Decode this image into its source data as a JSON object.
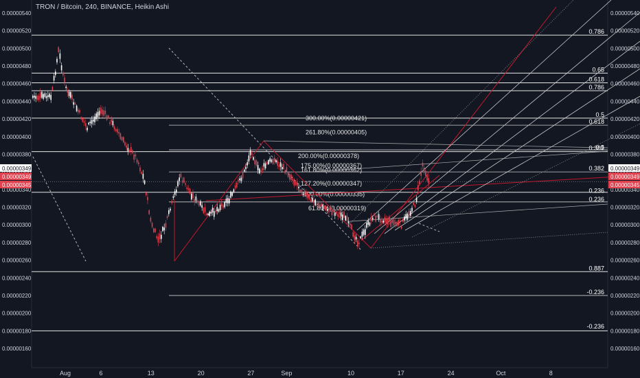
{
  "header": {
    "title": "TRON / Bitcoin, 240, BINANCE, Heikin Ashi"
  },
  "colors": {
    "background": "#131722",
    "bull": "#ffffff",
    "bear": "#e0414e",
    "fib_line": "#d1d4dc",
    "pitchfork_red": "#c2182b",
    "price_tag_red": "#e0414e",
    "dashed_trend": "#b2b5be"
  },
  "chart_data": {
    "type": "candlestick",
    "symbol": "TRON / Bitcoin",
    "interval": "240",
    "exchange": "BINANCE",
    "candle_style": "Heikin Ashi",
    "ylim": [
      1.5e-06,
      5.5e-06
    ],
    "y_ticks": [
      "0.00000540",
      "0.00000520",
      "0.00000500",
      "0.00000480",
      "0.00000460",
      "0.00000440",
      "0.00000420",
      "0.00000400",
      "0.00000380",
      "0.00000360",
      "0.00000340",
      "0.00000320",
      "0.00000300",
      "0.00000280",
      "0.00000260",
      "0.00000240",
      "0.00000220",
      "0.00000200",
      "0.00000180",
      "0.00000160"
    ],
    "x_ticks": [
      "Aug",
      "6",
      "13",
      "20",
      "27",
      "Sep",
      "10",
      "17",
      "24",
      "Oct",
      "8"
    ],
    "price_tags": {
      "left": [
        "0.00000349",
        "0.00000349",
        "0.00000345"
      ],
      "right": [
        "0.00000349",
        "0.00000349",
        "0.00000345"
      ]
    },
    "price_path": [
      [
        "Jul 30",
        4.45e-06
      ],
      [
        "Jul 31",
        4.98e-06
      ],
      [
        "Aug 1",
        4.55e-06
      ],
      [
        "Aug 2",
        4.4e-06
      ],
      [
        "Aug 4",
        4.1e-06
      ],
      [
        "Aug 6",
        4.3e-06
      ],
      [
        "Aug 8",
        4.1e-06
      ],
      [
        "Aug 9",
        3.95e-06
      ],
      [
        "Aug 11",
        3.75e-06
      ],
      [
        "Aug 12",
        3.5e-06
      ],
      [
        "Aug 13",
        3e-06
      ],
      [
        "Aug 14",
        2.82e-06
      ],
      [
        "Aug 15",
        3e-06
      ],
      [
        "Aug 17",
        3.55e-06
      ],
      [
        "Aug 19",
        3.3e-06
      ],
      [
        "Aug 21",
        3.1e-06
      ],
      [
        "Aug 24",
        3.3e-06
      ],
      [
        "Aug 26",
        3.6e-06
      ],
      [
        "Aug 27",
        3.85e-06
      ],
      [
        "Aug 28",
        3.6e-06
      ],
      [
        "Aug 30",
        3.75e-06
      ],
      [
        "Sep 1",
        3.6e-06
      ],
      [
        "Sep 4",
        3.3e-06
      ],
      [
        "Sep 6",
        3.2e-06
      ],
      [
        "Sep 9",
        3.1e-06
      ],
      [
        "Sep 11",
        2.8e-06
      ],
      [
        "Sep 13",
        3.1e-06
      ],
      [
        "Sep 15",
        3.05e-06
      ],
      [
        "Sep 17",
        3e-06
      ],
      [
        "Sep 19",
        3.25e-06
      ],
      [
        "Sep 20",
        3.7e-06
      ],
      [
        "Sep 21",
        3.45e-06
      ]
    ],
    "fib_levels_left": [
      {
        "ratio": "0.786",
        "price": 5.15e-06
      },
      {
        "ratio": "0.65",
        "price": 4.72e-06
      },
      {
        "ratio": "0.618",
        "price": 4.61e-06
      },
      {
        "ratio": "0.786",
        "price": 4.52e-06
      },
      {
        "ratio": "0.5",
        "price": 4.21e-06
      },
      {
        "ratio": "0.618",
        "price": 4.13e-06
      },
      {
        "ratio": "0.382",
        "price": 3.83e-06
      },
      {
        "ratio": "0.5",
        "price": 3.84e-06
      },
      {
        "ratio": "0.382",
        "price": 3.6e-06
      },
      {
        "ratio": "0.236",
        "price": 3.35e-06
      },
      {
        "ratio": "0.236",
        "price": 3.25e-06
      },
      {
        "ratio": "0.887",
        "price": 2.47e-06
      },
      {
        "ratio": "-0.236",
        "price": 2.2e-06
      },
      {
        "ratio": "-0.236",
        "price": 1.81e-06
      }
    ],
    "fib_extension_labels": [
      "300.00%(0.00000421)",
      "261.80%(0.00000405)",
      "200.00%(0.00000378)",
      "175.00%(0.00000367)",
      "161.80%(0.00000362)",
      "127.20%(0.00000347)",
      "100.00%(0.00000335)",
      "61.80%(0.00000319)"
    ],
    "fib_extension_prices": [
      4.21e-06,
      4.05e-06,
      3.78e-06,
      3.67e-06,
      3.62e-06,
      3.47e-06,
      3.35e-06,
      3.19e-06
    ]
  }
}
